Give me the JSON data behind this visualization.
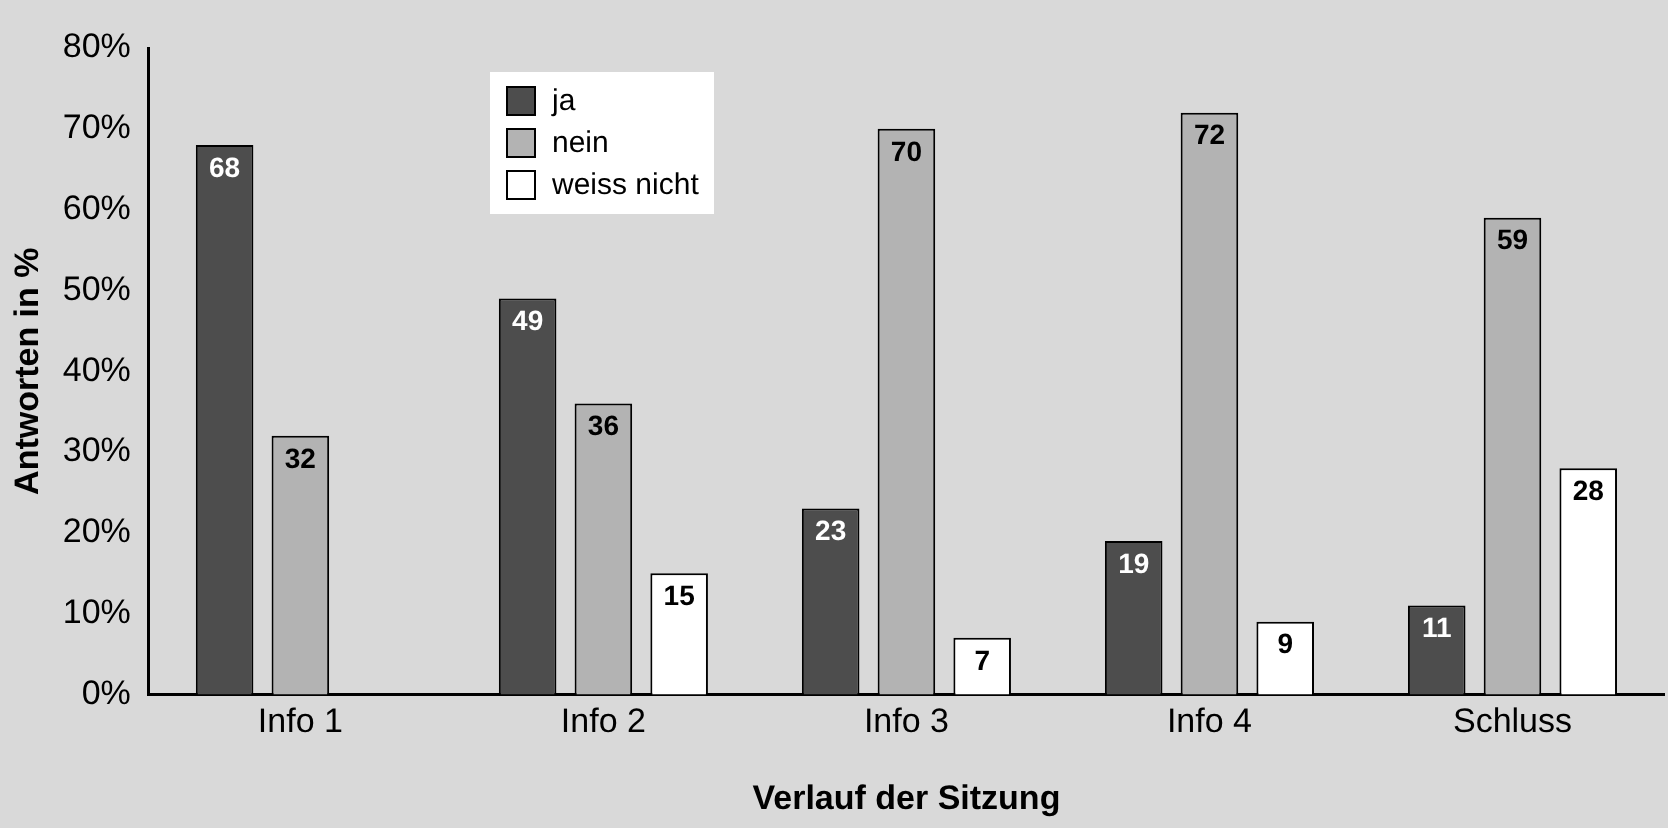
{
  "chart_data": {
    "type": "bar",
    "xlabel": "Verlauf der Sitzung",
    "ylabel": "Antworten in %",
    "categories": [
      "Info 1",
      "Info 2",
      "Info 3",
      "Info 4",
      "Schluss"
    ],
    "series": [
      {
        "name": "ja",
        "color": "#4d4d4d",
        "values": [
          68,
          49,
          23,
          19,
          11
        ]
      },
      {
        "name": "nein",
        "color": "#b3b3b3",
        "values": [
          32,
          36,
          70,
          72,
          59
        ]
      },
      {
        "name": "weiss nicht",
        "color": "#ffffff",
        "values": [
          null,
          15,
          7,
          9,
          28
        ]
      }
    ],
    "ylim": [
      0,
      80
    ],
    "yticks": [
      {
        "value": 0,
        "label": "0%"
      },
      {
        "value": 10,
        "label": "10%"
      },
      {
        "value": 20,
        "label": "20%"
      },
      {
        "value": 30,
        "label": "30%"
      },
      {
        "value": 40,
        "label": "40%"
      },
      {
        "value": 50,
        "label": "50%"
      },
      {
        "value": 60,
        "label": "60%"
      },
      {
        "value": 70,
        "label": "70%"
      },
      {
        "value": 80,
        "label": "80%"
      }
    ],
    "grid": false,
    "legend": "top left",
    "data_labels": true
  }
}
